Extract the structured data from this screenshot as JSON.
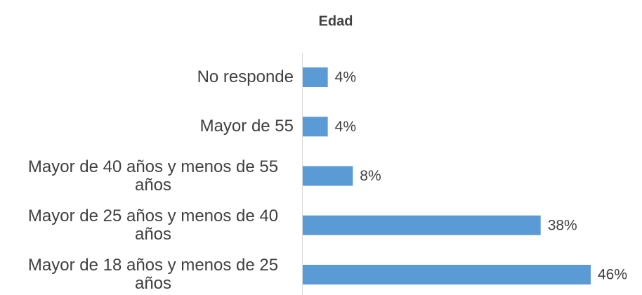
{
  "chart_data": {
    "type": "bar",
    "orientation": "horizontal",
    "title": "Edad",
    "categories": [
      "No responde",
      "Mayor de 55",
      "Mayor de 40 años y menos de 55 años",
      "Mayor de 25 años y menos de 40 años",
      "Mayor de 18 años y menos de 25 años"
    ],
    "values": [
      4,
      4,
      8,
      38,
      46
    ],
    "value_labels": [
      "4%",
      "4%",
      "8%",
      "38%",
      "46%"
    ],
    "color": "#5b9bd5",
    "grid": false
  }
}
